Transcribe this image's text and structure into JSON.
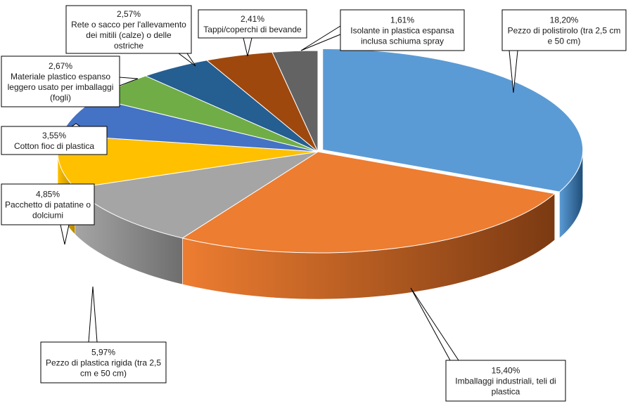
{
  "chart_data": {
    "type": "pie",
    "style": "3d-exploded-callouts",
    "slices": [
      {
        "pct_label": "18,20%",
        "value": 18.2,
        "label_lines": [
          "Pezzo di polistirolo (tra 2,5 cm",
          "e 50 cm)"
        ],
        "color": "#5B9BD5",
        "side": "#1F4E79"
      },
      {
        "pct_label": "15,40%",
        "value": 15.4,
        "label_lines": [
          "Imballaggi industriali, teli di",
          "plastica"
        ],
        "color": "#ED7D31",
        "side": "#7B3A12"
      },
      {
        "pct_label": "5,97%",
        "value": 5.97,
        "label_lines": [
          "Pezzo di plastica rigida (tra 2,5",
          "cm e 50 cm)"
        ],
        "color": "#A5A5A5",
        "side": "#6E6E6E"
      },
      {
        "pct_label": "4,85%",
        "value": 4.85,
        "label_lines": [
          "Pacchetto di patatine o",
          "dolciumi"
        ],
        "color": "#FFC000",
        "side": "#B38600"
      },
      {
        "pct_label": "3,55%",
        "value": 3.55,
        "label_lines": [
          "Cotton fioc di plastica"
        ],
        "color": "#4472C4",
        "side": "#2B4A80"
      },
      {
        "pct_label": "2,67%",
        "value": 2.67,
        "label_lines": [
          "Materiale plastico espanso",
          "leggero usato per imballaggi",
          "(fogli)"
        ],
        "color": "#70AD47",
        "side": "#44702B"
      },
      {
        "pct_label": "2,57%",
        "value": 2.57,
        "label_lines": [
          "Rete o sacco per l'allevamento",
          "dei mitili (calze) o delle",
          "ostriche"
        ],
        "color": "#255E91",
        "side": "#163A5A"
      },
      {
        "pct_label": "2,41%",
        "value": 2.41,
        "label_lines": [
          "Tappi/coperchi di bevande"
        ],
        "color": "#9E480E",
        "side": "#5E2A08"
      },
      {
        "pct_label": "1,61%",
        "value": 1.61,
        "label_lines": [
          "Isolante in plastica espansa",
          "inclusa schiuma spray"
        ],
        "color": "#636363",
        "side": "#3C3C3C"
      }
    ]
  }
}
